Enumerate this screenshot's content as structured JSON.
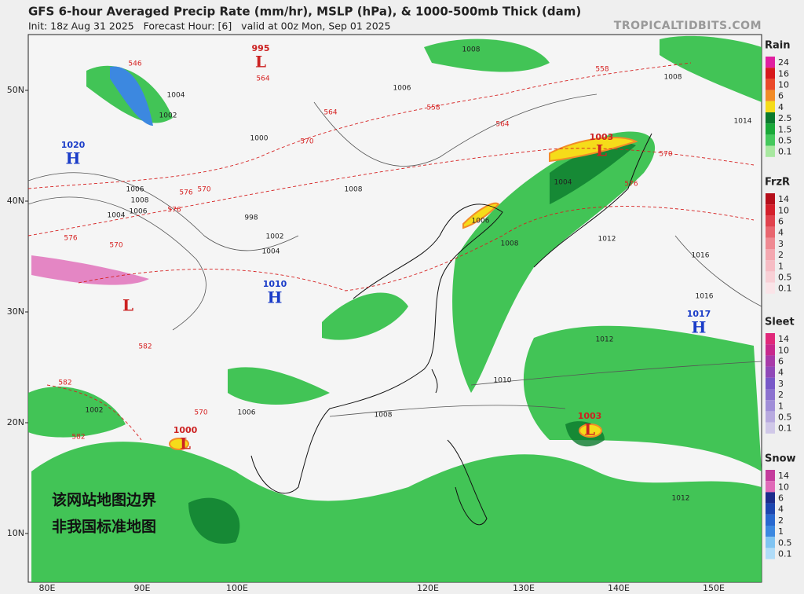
{
  "header": {
    "title": "GFS 6-hour Averaged Precip Rate (mm/hr), MSLP (hPa), & 1000-500mb Thick (dam)",
    "subtitle": "Init: 18z Aug 31 2025   Forecast Hour: [6]   valid at 00z Mon, Sep 01 2025",
    "site": "TROPICALTIDBITS.COM"
  },
  "map": {
    "lat_labels": [
      "50N",
      "40N",
      "30N",
      "20N",
      "10N"
    ],
    "lon_labels": [
      "80E",
      "90E",
      "100E",
      "120E",
      "130E",
      "140E",
      "150E"
    ],
    "centers": [
      {
        "kind": "L",
        "pressure": "995",
        "color": "#cc2222"
      },
      {
        "kind": "H",
        "pressure": "1020",
        "color": "#1a3cc8"
      },
      {
        "kind": "L",
        "color": "#cc2222"
      },
      {
        "kind": "H",
        "pressure": "1010",
        "color": "#1a3cc8"
      },
      {
        "kind": "L",
        "pressure": "1003",
        "color": "#cc2222"
      },
      {
        "kind": "H",
        "pressure": "1017",
        "color": "#1a3cc8"
      },
      {
        "kind": "L",
        "pressure": "1003",
        "color": "#cc2222"
      },
      {
        "kind": "L",
        "pressure": "1000",
        "color": "#cc2222"
      }
    ],
    "isobar_labels": [
      "1004",
      "1002",
      "1000",
      "1006",
      "1008",
      "1006",
      "1004",
      "998",
      "1002",
      "1004",
      "1008",
      "1006",
      "1008",
      "1012",
      "1016",
      "1016",
      "1012",
      "1010",
      "1008",
      "1006",
      "1002",
      "1012",
      "1004",
      "1014",
      "1008",
      "1006",
      "1008"
    ],
    "thickness_labels": [
      "546",
      "564",
      "558",
      "564",
      "570",
      "576",
      "570",
      "576",
      "570",
      "576",
      "582",
      "582",
      "582",
      "558",
      "570",
      "576",
      "564",
      "570"
    ],
    "notice": [
      "该网站地图边界",
      "非我国标准地图"
    ]
  },
  "legend": [
    {
      "title": "Rain",
      "levels": [
        "24",
        "16",
        "10",
        "6",
        "4",
        "2.5",
        "1.5",
        "0.5",
        "0.1"
      ],
      "colors": [
        "#e01fa0",
        "#d7191c",
        "#ea4a2a",
        "#f28c28",
        "#f5dc1a",
        "#0b7a2d",
        "#19a838",
        "#44c85c",
        "#a8e8a0"
      ]
    },
    {
      "title": "FrzR",
      "levels": [
        "14",
        "10",
        "6",
        "4",
        "3",
        "2",
        "1",
        "0.5",
        "0.1"
      ],
      "colors": [
        "#b50e1a",
        "#d41f2b",
        "#e0424d",
        "#e8666f",
        "#ef8a92",
        "#f4a8b0",
        "#f6bcc4",
        "#f8d0d6",
        "#fae4e8"
      ]
    },
    {
      "title": "Sleet",
      "levels": [
        "14",
        "10",
        "6",
        "4",
        "3",
        "2",
        "1",
        "0.5",
        "0.1"
      ],
      "colors": [
        "#e0287a",
        "#c8288c",
        "#a83aa8",
        "#9048b8",
        "#7858c8",
        "#8c72d0",
        "#a08ed8",
        "#b8aadf",
        "#d0c8e8"
      ]
    },
    {
      "title": "Snow",
      "levels": [
        "14",
        "10",
        "6",
        "4",
        "2",
        "1",
        "0.5",
        "0.1"
      ],
      "colors": [
        "#c43c9c",
        "#e06ab8",
        "#1c2c8c",
        "#1c46b0",
        "#2868d0",
        "#3c88e0",
        "#80c4f2",
        "#b0dcf8"
      ]
    }
  ]
}
